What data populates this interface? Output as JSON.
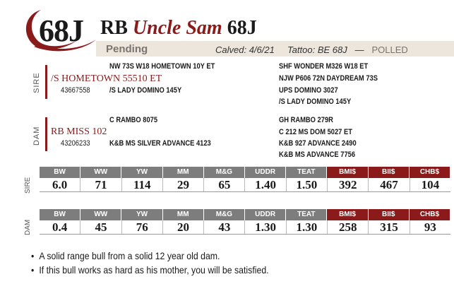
{
  "header": {
    "lot": "68J",
    "prefix": "RB",
    "name": "Uncle Sam",
    "tag": "68J",
    "status": "Pending",
    "calved": "Calved: 4/6/21",
    "tattoo": "Tattoo: BE 68J",
    "dash1": "—",
    "dash2": "—",
    "polled": "POLLED"
  },
  "sire": {
    "label": "SIRE",
    "name": "/S HOMETOWN 55510 ET",
    "reg": "43667558",
    "sire_top": "NW 73S W18 HOMETOWN 10Y ET",
    "dam_top": "/S LADY DOMINO 145Y",
    "far": [
      "SHF WONDER M326 W18 ET",
      "NJW P606 72N DAYDREAM 73S",
      "UPS DOMINO 3027",
      "/S LADY DOMINO 145Y"
    ]
  },
  "dam": {
    "label": "DAM",
    "name": "RB MISS 102",
    "reg": "43206233",
    "sire_top": "C RAMBO 8075",
    "dam_top": "K&B MS SILVER ADVANCE 4123",
    "far": [
      "GH RAMBO 279R",
      "C 212 MS DOM 5027 ET",
      "K&B 927 ADVANCE 2490",
      "K&B MS ADVANCE 7756"
    ]
  },
  "epd_headers": [
    "BW",
    "WW",
    "YW",
    "MM",
    "M&G",
    "UDDR",
    "TEAT",
    "BMI$",
    "BII$",
    "CHB$"
  ],
  "sire_epd": {
    "label": "SIRE",
    "values": [
      "6.0",
      "71",
      "114",
      "29",
      "65",
      "1.40",
      "1.50",
      "392",
      "467",
      "104"
    ]
  },
  "dam_epd": {
    "label": "DAM",
    "values": [
      "0.4",
      "45",
      "76",
      "20",
      "43",
      "1.30",
      "1.30",
      "258",
      "315",
      "93"
    ]
  },
  "notes": [
    "A solid range bull from a solid 12 year old dam.",
    "If this bull works as hard as his mother, you will be satisfied."
  ],
  "colors": {
    "accent": "#8b1a1a",
    "header_gray": "#7d7d7d",
    "status_bg": "#ece6dc"
  }
}
